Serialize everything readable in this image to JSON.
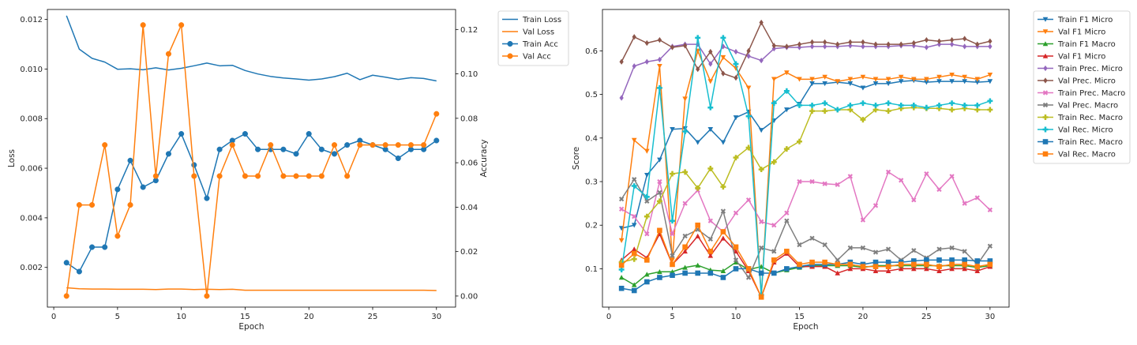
{
  "chart_data": [
    {
      "type": "line",
      "title": "",
      "xlabel": "Epoch",
      "ylabel": "Loss",
      "y2label": "Accuracy",
      "xlim": [
        -0.5,
        31.5
      ],
      "ylim": [
        0.0004,
        0.0124
      ],
      "y2lim": [
        -0.005,
        0.129
      ],
      "xticks": [
        0,
        5,
        10,
        15,
        20,
        25,
        30
      ],
      "yticks": [
        0.002,
        0.004,
        0.006,
        0.008,
        0.01,
        0.012
      ],
      "y2ticks": [
        0.0,
        0.02,
        0.04,
        0.06,
        0.08,
        0.1,
        0.12
      ],
      "grid": false,
      "legend_position": "outside-right",
      "x": [
        1,
        2,
        3,
        4,
        5,
        6,
        7,
        8,
        9,
        10,
        11,
        12,
        13,
        14,
        15,
        16,
        17,
        18,
        19,
        20,
        21,
        22,
        23,
        24,
        25,
        26,
        27,
        28,
        29,
        30
      ],
      "series": [
        {
          "name": "Train Loss",
          "axis": "left",
          "color": "#1f77b4",
          "marker": "none",
          "values": [
            0.01215,
            0.0108,
            0.01043,
            0.01028,
            0.00999,
            0.01001,
            0.00997,
            0.01005,
            0.00996,
            0.01003,
            0.01013,
            0.01024,
            0.01013,
            0.01015,
            0.00994,
            0.0098,
            0.0097,
            0.00964,
            0.0096,
            0.00955,
            0.0096,
            0.00969,
            0.00983,
            0.00957,
            0.00975,
            0.00967,
            0.00958,
            0.00965,
            0.00962,
            0.00952
          ]
        },
        {
          "name": "Val Loss",
          "axis": "left",
          "color": "#ff7f0e",
          "marker": "none",
          "values": [
            0.00118,
            0.00114,
            0.00113,
            0.00113,
            0.00112,
            0.00112,
            0.00112,
            0.00111,
            0.00113,
            0.00113,
            0.00111,
            0.00112,
            0.00111,
            0.00112,
            0.00108,
            0.00108,
            0.00108,
            0.00108,
            0.00108,
            0.00108,
            0.00108,
            0.00108,
            0.00108,
            0.00108,
            0.00108,
            0.00108,
            0.00108,
            0.00108,
            0.00108,
            0.00107
          ]
        },
        {
          "name": "Train Acc",
          "axis": "right",
          "color": "#1f77b4",
          "marker": "circle",
          "values": [
            0.015,
            0.011,
            0.022,
            0.022,
            0.048,
            0.061,
            0.049,
            0.052,
            0.064,
            0.073,
            0.059,
            0.044,
            0.066,
            0.07,
            0.073,
            0.066,
            0.066,
            0.066,
            0.064,
            0.073,
            0.066,
            0.064,
            0.068,
            0.07,
            0.068,
            0.066,
            0.062,
            0.066,
            0.066,
            0.07
          ]
        },
        {
          "name": "Val Acc",
          "axis": "right",
          "color": "#ff7f0e",
          "marker": "circle",
          "values": [
            0.0,
            0.041,
            0.041,
            0.068,
            0.027,
            0.041,
            0.122,
            0.054,
            0.109,
            0.122,
            0.054,
            0.0,
            0.054,
            0.068,
            0.054,
            0.054,
            0.068,
            0.054,
            0.054,
            0.054,
            0.054,
            0.068,
            0.054,
            0.068,
            0.068,
            0.068,
            0.068,
            0.068,
            0.068,
            0.082
          ]
        }
      ]
    },
    {
      "type": "line",
      "title": "",
      "xlabel": "Epoch",
      "ylabel": "Score",
      "xlim": [
        -0.5,
        31.5
      ],
      "ylim": [
        0.012,
        0.695
      ],
      "xticks": [
        0,
        5,
        10,
        15,
        20,
        25,
        30
      ],
      "yticks": [
        0.1,
        0.2,
        0.3,
        0.4,
        0.5,
        0.6
      ],
      "grid": false,
      "legend_position": "outside-right",
      "x": [
        1,
        2,
        3,
        4,
        5,
        6,
        7,
        8,
        9,
        10,
        11,
        12,
        13,
        14,
        15,
        16,
        17,
        18,
        19,
        20,
        21,
        22,
        23,
        24,
        25,
        26,
        27,
        28,
        29,
        30
      ],
      "series": [
        {
          "name": "Train F1 Micro",
          "color": "#1f77b4",
          "marker": "triangle-down",
          "values": [
            0.193,
            0.2,
            0.315,
            0.35,
            0.42,
            0.422,
            0.39,
            0.42,
            0.39,
            0.447,
            0.46,
            0.418,
            0.44,
            0.465,
            0.478,
            0.525,
            0.525,
            0.528,
            0.525,
            0.515,
            0.525,
            0.525,
            0.53,
            0.532,
            0.528,
            0.53,
            0.53,
            0.53,
            0.528,
            0.53
          ]
        },
        {
          "name": "Val F1 Micro",
          "color": "#ff7f0e",
          "marker": "triangle-down",
          "values": [
            0.165,
            0.395,
            0.37,
            0.565,
            0.12,
            0.49,
            0.6,
            0.53,
            0.585,
            0.56,
            0.515,
            0.035,
            0.535,
            0.55,
            0.535,
            0.535,
            0.54,
            0.53,
            0.535,
            0.54,
            0.535,
            0.535,
            0.54,
            0.535,
            0.535,
            0.54,
            0.545,
            0.54,
            0.535,
            0.545
          ]
        },
        {
          "name": "Train F1 Macro",
          "color": "#2ca02c",
          "marker": "triangle-up",
          "values": [
            0.08,
            0.063,
            0.087,
            0.093,
            0.093,
            0.103,
            0.108,
            0.097,
            0.095,
            0.115,
            0.098,
            0.105,
            0.09,
            0.097,
            0.103,
            0.107,
            0.107,
            0.107,
            0.107,
            0.103,
            0.107,
            0.107,
            0.107,
            0.107,
            0.107,
            0.107,
            0.107,
            0.107,
            0.103,
            0.107
          ]
        },
        {
          "name": "Val F1 Micro",
          "color": "#d62728",
          "marker": "triangle-up",
          "values": [
            0.12,
            0.145,
            0.125,
            0.18,
            0.11,
            0.14,
            0.175,
            0.13,
            0.17,
            0.14,
            0.095,
            0.035,
            0.115,
            0.135,
            0.105,
            0.105,
            0.105,
            0.09,
            0.1,
            0.1,
            0.095,
            0.095,
            0.1,
            0.1,
            0.1,
            0.095,
            0.1,
            0.1,
            0.095,
            0.105
          ]
        },
        {
          "name": "Train Prec. Micro",
          "color": "#9467bd",
          "marker": "diamond",
          "values": [
            0.492,
            0.565,
            0.575,
            0.58,
            0.61,
            0.615,
            0.615,
            0.57,
            0.61,
            0.598,
            0.588,
            0.578,
            0.605,
            0.608,
            0.608,
            0.61,
            0.61,
            0.61,
            0.612,
            0.61,
            0.61,
            0.61,
            0.612,
            0.612,
            0.608,
            0.615,
            0.615,
            0.61,
            0.61,
            0.61
          ]
        },
        {
          "name": "Val Prec. Micro",
          "color": "#8c564b",
          "marker": "diamond",
          "values": [
            0.575,
            0.632,
            0.618,
            0.625,
            0.608,
            0.612,
            0.558,
            0.598,
            0.548,
            0.538,
            0.6,
            0.665,
            0.612,
            0.61,
            0.615,
            0.62,
            0.62,
            0.615,
            0.62,
            0.62,
            0.615,
            0.615,
            0.615,
            0.618,
            0.625,
            0.622,
            0.625,
            0.628,
            0.615,
            0.622
          ]
        },
        {
          "name": "Train Prec. Macro",
          "color": "#e377c2",
          "marker": "x",
          "values": [
            0.237,
            0.22,
            0.18,
            0.3,
            0.18,
            0.25,
            0.28,
            0.21,
            0.185,
            0.228,
            0.258,
            0.208,
            0.2,
            0.228,
            0.3,
            0.3,
            0.295,
            0.293,
            0.312,
            0.212,
            0.245,
            0.322,
            0.303,
            0.258,
            0.318,
            0.282,
            0.312,
            0.25,
            0.263,
            0.235
          ]
        },
        {
          "name": "Val Prec. Macro",
          "color": "#7f7f7f",
          "marker": "x",
          "values": [
            0.26,
            0.305,
            0.255,
            0.275,
            0.13,
            0.175,
            0.19,
            0.168,
            0.232,
            0.12,
            0.08,
            0.148,
            0.14,
            0.21,
            0.155,
            0.17,
            0.155,
            0.12,
            0.148,
            0.148,
            0.138,
            0.145,
            0.12,
            0.142,
            0.125,
            0.145,
            0.148,
            0.14,
            0.11,
            0.152
          ]
        },
        {
          "name": "Train Rec. Macro",
          "color": "#bcbd22",
          "marker": "plus",
          "values": [
            0.115,
            0.122,
            0.22,
            0.255,
            0.318,
            0.322,
            0.285,
            0.33,
            0.288,
            0.355,
            0.378,
            0.328,
            0.345,
            0.375,
            0.392,
            0.462,
            0.462,
            0.465,
            0.465,
            0.442,
            0.465,
            0.462,
            0.468,
            0.47,
            0.468,
            0.468,
            0.465,
            0.468,
            0.465,
            0.465
          ]
        },
        {
          "name": "Val Rec. Micro",
          "color": "#17becf",
          "marker": "plus",
          "values": [
            0.098,
            0.29,
            0.265,
            0.515,
            0.21,
            0.415,
            0.63,
            0.47,
            0.63,
            0.57,
            0.45,
            0.04,
            0.48,
            0.508,
            0.475,
            0.475,
            0.48,
            0.465,
            0.475,
            0.48,
            0.475,
            0.48,
            0.475,
            0.475,
            0.47,
            0.475,
            0.48,
            0.475,
            0.475,
            0.485
          ]
        },
        {
          "name": "Train Rec. Macro",
          "color": "#1f77b4",
          "marker": "square",
          "values": [
            0.055,
            0.05,
            0.07,
            0.08,
            0.085,
            0.09,
            0.09,
            0.09,
            0.08,
            0.1,
            0.1,
            0.09,
            0.09,
            0.1,
            0.105,
            0.11,
            0.11,
            0.11,
            0.115,
            0.11,
            0.115,
            0.115,
            0.115,
            0.118,
            0.12,
            0.12,
            0.12,
            0.12,
            0.118,
            0.118
          ]
        },
        {
          "name": "Val Rec. Macro",
          "color": "#ff7f0e",
          "marker": "square",
          "values": [
            0.108,
            0.135,
            0.12,
            0.188,
            0.11,
            0.15,
            0.2,
            0.14,
            0.185,
            0.15,
            0.1,
            0.035,
            0.12,
            0.14,
            0.11,
            0.115,
            0.115,
            0.11,
            0.11,
            0.105,
            0.105,
            0.105,
            0.11,
            0.11,
            0.11,
            0.105,
            0.11,
            0.11,
            0.105,
            0.11
          ]
        }
      ]
    }
  ]
}
